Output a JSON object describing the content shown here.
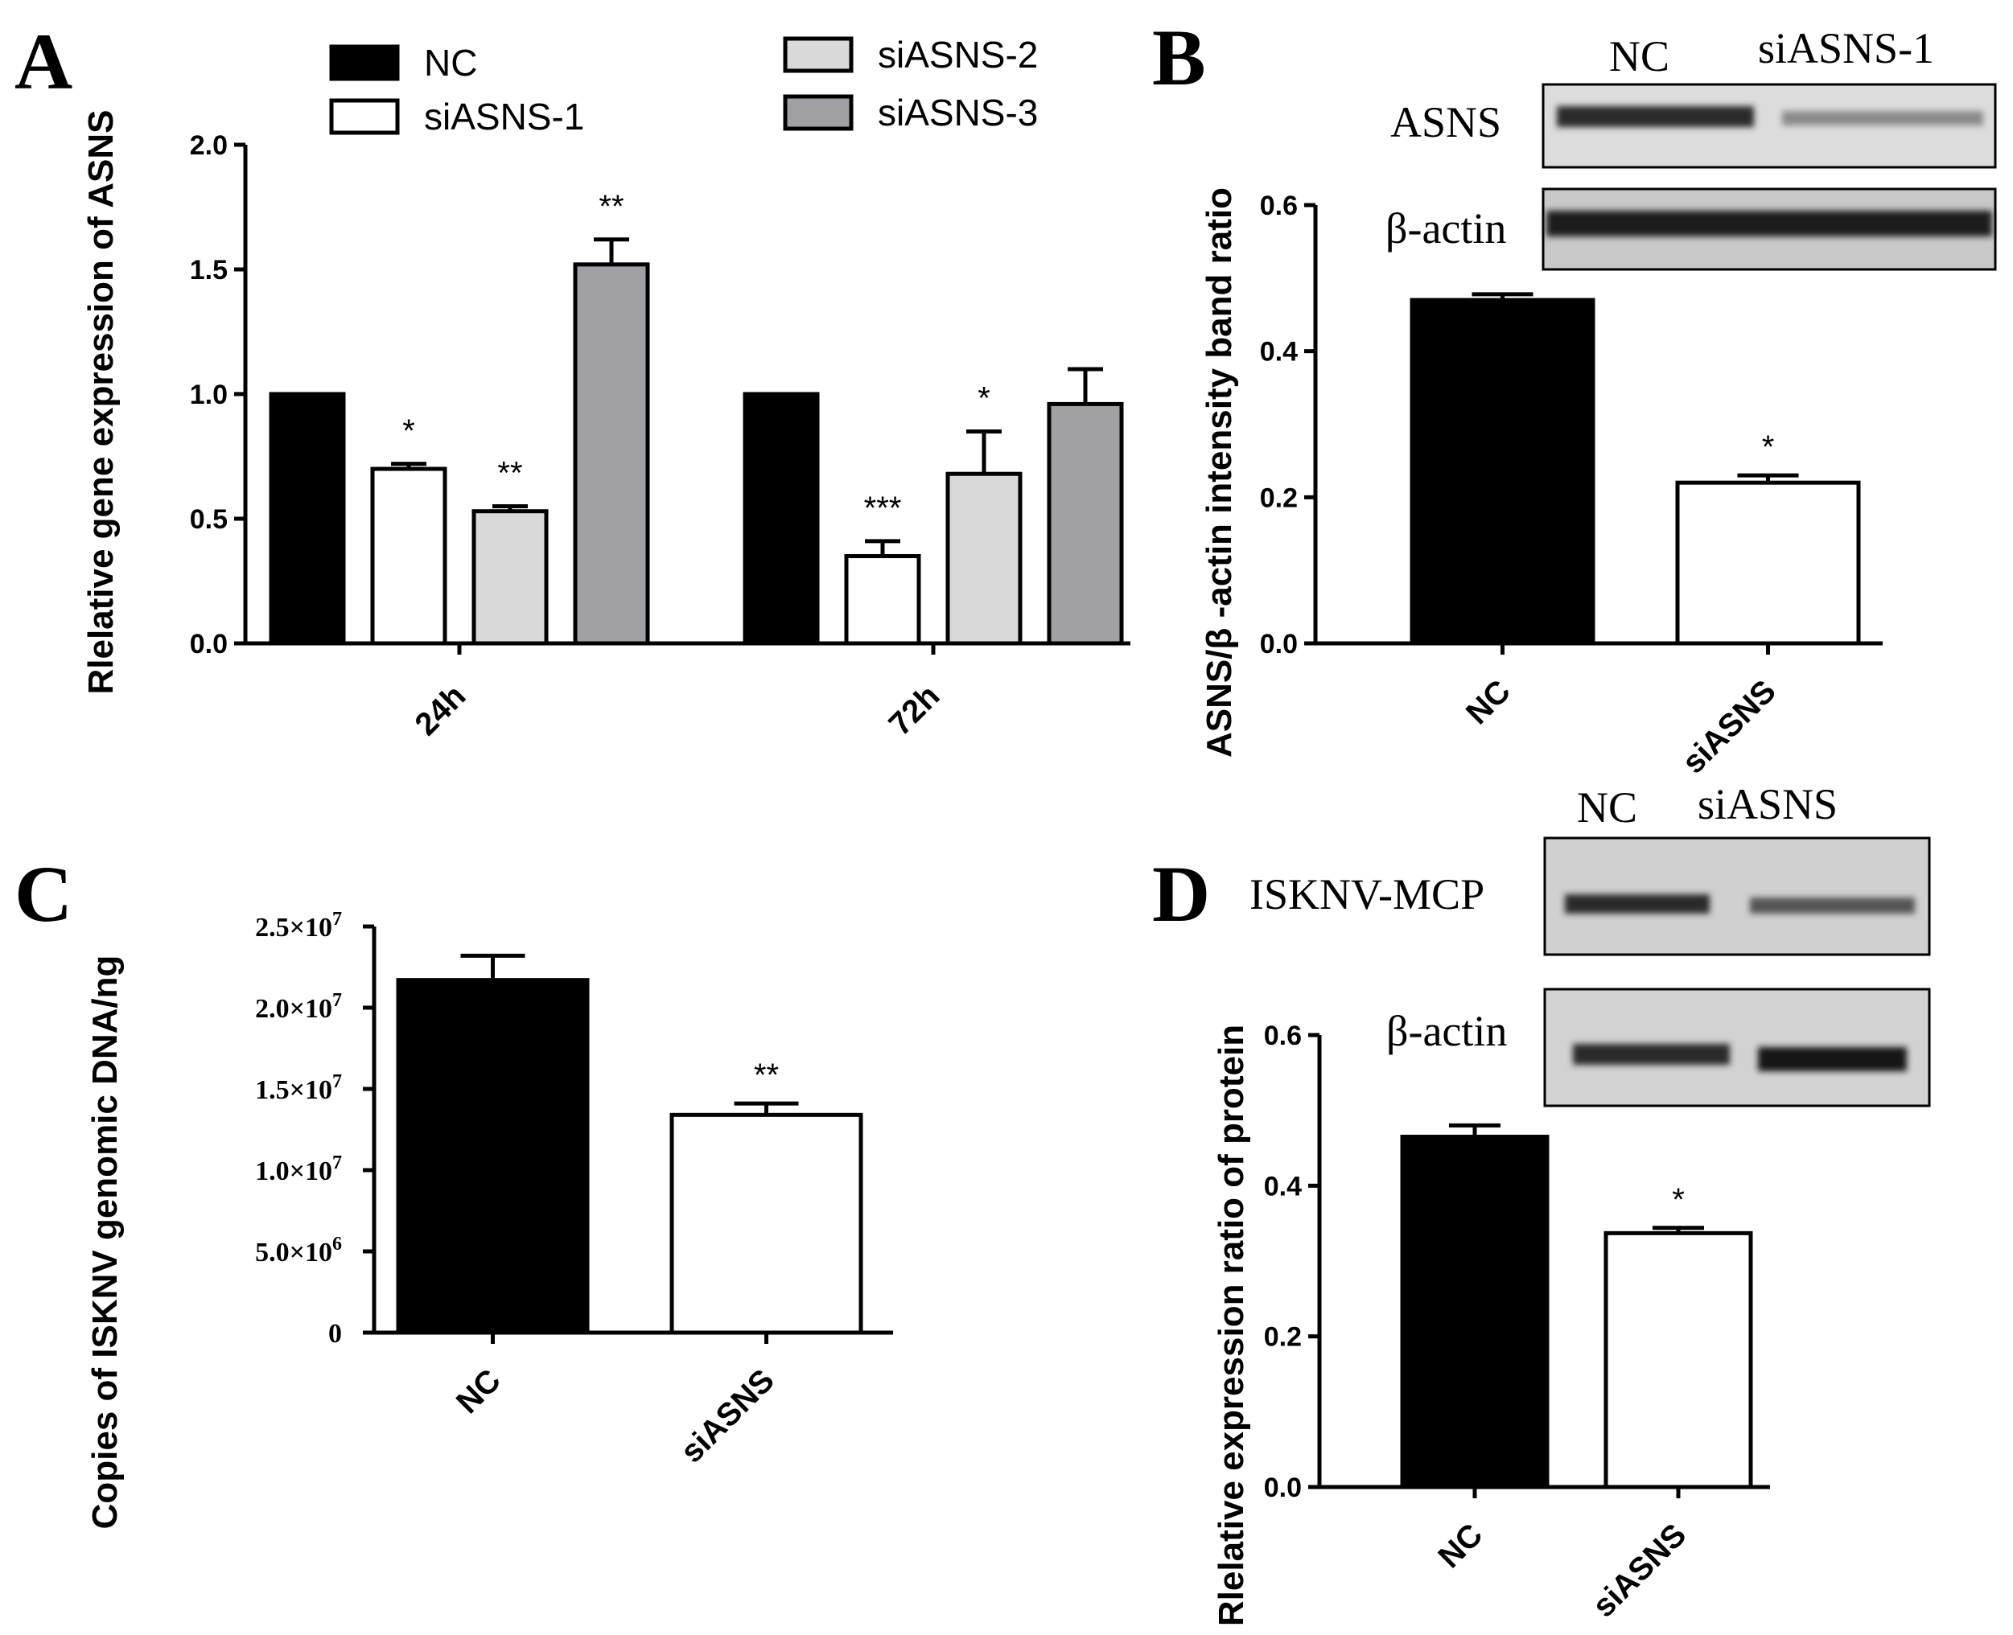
{
  "figure": {
    "panel_letters": [
      "A",
      "B",
      "C",
      "D"
    ]
  },
  "chart_data": [
    {
      "panel": "A",
      "type": "bar",
      "ylabel": "Rlelative gene expression of ASNS",
      "categories": [
        "24h",
        "72h"
      ],
      "ylim": [
        0,
        2.0
      ],
      "yticks": [
        "0.0",
        "0.5",
        "1.0",
        "1.5",
        "2.0"
      ],
      "legend": [
        "NC",
        "siASNS-1",
        "siASNS-2",
        "siASNS-3"
      ],
      "series": [
        {
          "name": "NC",
          "color": "#000000",
          "values": [
            1.0,
            1.0
          ],
          "errors": [
            0,
            0
          ],
          "sig": [
            "",
            ""
          ]
        },
        {
          "name": "siASNS-1",
          "color": "#ffffff",
          "values": [
            0.7,
            0.35
          ],
          "errors": [
            0.02,
            0.06
          ],
          "sig": [
            "*",
            "***"
          ]
        },
        {
          "name": "siASNS-2",
          "color": "#d9d9d9",
          "values": [
            0.53,
            0.68
          ],
          "errors": [
            0.02,
            0.17
          ],
          "sig": [
            "**",
            "*"
          ]
        },
        {
          "name": "siASNS-3",
          "color": "#a0a0a4",
          "values": [
            1.52,
            0.96
          ],
          "errors": [
            0.1,
            0.14
          ],
          "sig": [
            "**",
            ""
          ]
        }
      ]
    },
    {
      "panel": "B",
      "type": "bar",
      "ylabel": "ASNS/β -actin intensity band ratio",
      "categories": [
        "NC",
        "siASNS"
      ],
      "ylim": [
        0,
        0.6
      ],
      "yticks": [
        "0.0",
        "0.2",
        "0.4",
        "0.6"
      ],
      "values": [
        0.47,
        0.22
      ],
      "errors": [
        0.008,
        0.01
      ],
      "colors": [
        "#000000",
        "#ffffff"
      ],
      "sig": [
        "",
        "*"
      ],
      "blot": {
        "lanes": [
          "NC",
          "siASNS-1"
        ],
        "rows": [
          "ASNS",
          "β-actin"
        ]
      }
    },
    {
      "panel": "C",
      "type": "bar",
      "ylabel": "Copies of ISKNV genomic DNA/ng",
      "categories": [
        "NC",
        "siASNS"
      ],
      "ylim": [
        0,
        25000000
      ],
      "yticks": [
        {
          "base": "0",
          "exp": ""
        },
        {
          "base": "5.0×10",
          "exp": "6"
        },
        {
          "base": "1.0×10",
          "exp": "7"
        },
        {
          "base": "1.5×10",
          "exp": "7"
        },
        {
          "base": "2.0×10",
          "exp": "7"
        },
        {
          "base": "2.5×10",
          "exp": "7"
        }
      ],
      "values": [
        21700000,
        13400000
      ],
      "errors": [
        1500000,
        700000
      ],
      "colors": [
        "#000000",
        "#ffffff"
      ],
      "sig": [
        "",
        "**"
      ]
    },
    {
      "panel": "D",
      "type": "bar",
      "ylabel": "Rlelative  expression ratio of protein",
      "categories": [
        "NC",
        "siASNS"
      ],
      "ylim": [
        0,
        0.6
      ],
      "yticks": [
        "0.0",
        "0.2",
        "0.4",
        "0.6"
      ],
      "values": [
        0.465,
        0.337
      ],
      "errors": [
        0.015,
        0.007
      ],
      "colors": [
        "#000000",
        "#ffffff"
      ],
      "sig": [
        "",
        "*"
      ],
      "blot": {
        "lanes": [
          "NC",
          "siASNS"
        ],
        "rows": [
          "ISKNV-MCP",
          "β-actin"
        ]
      }
    }
  ]
}
